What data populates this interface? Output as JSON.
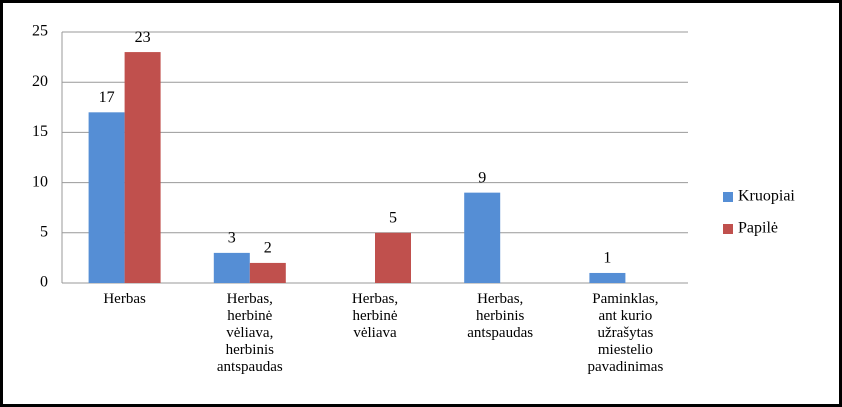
{
  "chart_data": {
    "type": "bar",
    "categories": [
      "Herbas",
      "Herbas,\nherbinė\nvėliava,\nherbinis\nantspaudas",
      "Herbas,\nherbinė\nvėliava",
      "Herbas,\nherbinis\nantspaudas",
      "Paminklas,\nant kurio\nužrašytas\nmiestelio\npavadinimas"
    ],
    "series": [
      {
        "name": "Kruopiai",
        "color": "#558ed5",
        "values": [
          17,
          3,
          null,
          9,
          1
        ]
      },
      {
        "name": "Papilė",
        "color": "#c0504d",
        "values": [
          23,
          2,
          5,
          null,
          null
        ]
      }
    ],
    "ylim": [
      0,
      25
    ],
    "yticks": [
      0,
      5,
      10,
      15,
      20,
      25
    ],
    "grid": true,
    "legend": "right"
  }
}
